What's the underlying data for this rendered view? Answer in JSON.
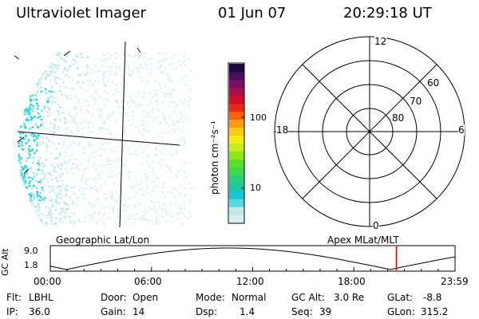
{
  "header": {
    "instrument": "Ultraviolet Imager",
    "date": "01 Jun 07",
    "time": "20:29:18 UT"
  },
  "colorbar": {
    "label": "photon cm⁻²s⁻¹",
    "ticks": [
      "100",
      "10"
    ],
    "colors": [
      "#d9efee",
      "#c1e9ea",
      "#59d7e0",
      "#16c6d4",
      "#1ec7a6",
      "#2ad07a",
      "#3cd94b",
      "#59e02b",
      "#8fe51e",
      "#c7ec1b",
      "#f2ef18",
      "#f7c914",
      "#f89a10",
      "#f4620e",
      "#e72a14",
      "#d10d2a",
      "#a80f4a",
      "#7d0f66",
      "#4c0d60",
      "#1f0a3c"
    ]
  },
  "polar_grid": {
    "mlt_labels": [
      "12",
      "18",
      "6",
      "0"
    ],
    "lat_labels": [
      "60",
      "70",
      "80"
    ]
  },
  "timeline": {
    "left_title": "Geographic Lat/Lon",
    "right_title": "Apex MLat/MLT",
    "y_axis_label": "GC Alt",
    "y_ticks": [
      "9.0",
      "1.8"
    ],
    "x_ticks": [
      "00:00",
      "06:00",
      "12:00",
      "18:00",
      "23:59"
    ],
    "marker_color": "#cc0000",
    "current_time_fraction": 0.855
  },
  "status": {
    "filter_label": "Flt:",
    "filter": "LBHL",
    "ip_label": "IP:",
    "ip": "36.0",
    "door_label": "Door:",
    "door": "Open",
    "gain_label": "Gain:",
    "gain": "14",
    "mode_label": "Mode:",
    "mode": "Normal",
    "dsp_label": "Dsp:",
    "dsp": "1.4",
    "gcalt_label": "GC Alt:",
    "gcalt": "3.0 Re",
    "seq_label": "Seq:",
    "seq": "39",
    "glat_label": "GLat:",
    "glat": "-8.8",
    "glon_label": "GLon:",
    "glon": "315.2"
  }
}
